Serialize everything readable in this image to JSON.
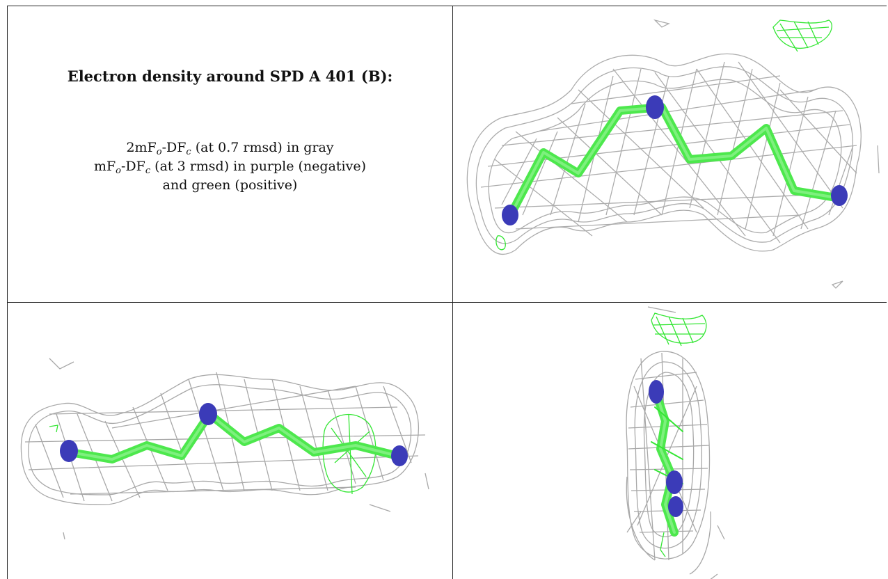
{
  "caption": {
    "title": "Electron density around SPD A 401 (B):",
    "line1": {
      "prefix": "2mF",
      "sub1": "o",
      "mid": "-DF",
      "sub2": "c",
      "suffix": " (at 0.7 rmsd) in gray"
    },
    "line2": {
      "prefix": "mF",
      "sub1": "o",
      "mid": "-DF",
      "sub2": "c",
      "suffix": " (at 3 rmsd) in purple (negative)"
    },
    "line3": "and green (positive)"
  },
  "panels": [
    {
      "name": "view-top-right"
    },
    {
      "name": "view-bottom-left"
    },
    {
      "name": "view-bottom-right"
    }
  ],
  "colors": {
    "mesh_gray": "#a8a8a8",
    "density_green": "#33e633",
    "carbon_green": "#4de84d",
    "nitrogen_blue": "#3b3bb8",
    "border": "#222222"
  }
}
